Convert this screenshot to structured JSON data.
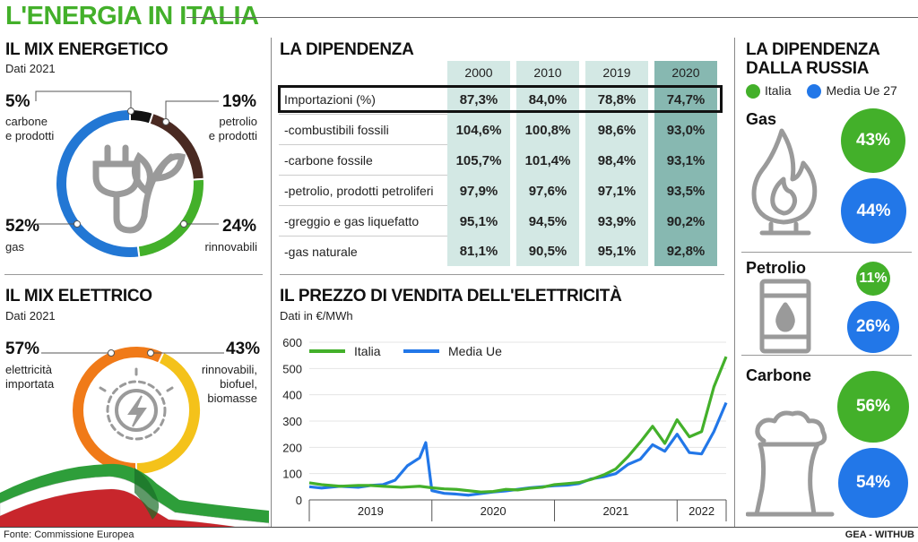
{
  "title": "L'ENERGIA IN ITALIA",
  "mix_energetico": {
    "title": "IL MIX ENERGETICO",
    "subtitle": "Dati 2021",
    "items": [
      {
        "pct": "5%",
        "label1": "carbone",
        "label2": "e prodotti",
        "value": 5,
        "color": "#111111"
      },
      {
        "pct": "19%",
        "label1": "petrolio",
        "label2": "e prodotti",
        "value": 19,
        "color": "#4a2a22"
      },
      {
        "pct": "24%",
        "label1": "rinnovabili",
        "label2": "",
        "value": 24,
        "color": "#43b02a"
      },
      {
        "pct": "52%",
        "label1": "gas",
        "label2": "",
        "value": 52,
        "color": "#2277d4"
      }
    ]
  },
  "mix_elettrico": {
    "title": "IL MIX ELETTRICO",
    "subtitle": "Dati 2021",
    "items": [
      {
        "pct": "57%",
        "label1": "elettricità",
        "label2": "importata",
        "label3": "",
        "value": 57,
        "color": "#f07a18"
      },
      {
        "pct": "43%",
        "label1": "rinnovabili,",
        "label2": "biofuel,",
        "label3": "biomasse",
        "value": 43,
        "color": "#f4c21a"
      }
    ]
  },
  "dipendenza": {
    "title": "LA DIPENDENZA",
    "years": [
      "2000",
      "2010",
      "2019",
      "2020"
    ],
    "rows": [
      {
        "label": "Importazioni (%)",
        "values": [
          "87,3%",
          "84,0%",
          "78,8%",
          "74,7%"
        ]
      },
      {
        "label": "-combustibili fossili",
        "values": [
          "104,6%",
          "100,8%",
          "98,6%",
          "93,0%"
        ]
      },
      {
        "label": "-carbone fossile",
        "values": [
          "105,7%",
          "101,4%",
          "98,4%",
          "93,1%"
        ]
      },
      {
        "label": "-petrolio, prodotti petroliferi",
        "values": [
          "97,9%",
          "97,6%",
          "97,1%",
          "93,5%"
        ]
      },
      {
        "label": "-greggio e gas liquefatto",
        "values": [
          "95,1%",
          "94,5%",
          "93,9%",
          "90,2%"
        ]
      },
      {
        "label": "-gas naturale",
        "values": [
          "81,1%",
          "90,5%",
          "95,1%",
          "92,8%"
        ]
      }
    ]
  },
  "prezzo": {
    "title": "IL PREZZO DI VENDITA DELL'ELETTRICITÀ",
    "subtitle": "Dati in €/MWh"
  },
  "russia": {
    "title1": "LA DIPENDENZA",
    "title2": "DALLA RUSSIA",
    "legend_italia": "Italia",
    "legend_ue": "Media Ue 27",
    "color_italia": "#43b02a",
    "color_ue": "#2277e8",
    "items": [
      {
        "name": "Gas",
        "italia": "43%",
        "ue": "44%",
        "icon": "flame-icon"
      },
      {
        "name": "Petrolio",
        "italia": "11%",
        "ue": "26%",
        "icon": "oil-barrel-icon"
      },
      {
        "name": "Carbone",
        "italia": "56%",
        "ue": "54%",
        "icon": "power-plant-icon"
      }
    ]
  },
  "footer": {
    "source": "Fonte: Commissione Europea",
    "credit": "GEA - WITHUB"
  },
  "chart_data": {
    "type": "line",
    "title": "IL PREZZO DI VENDITA DELL'ELETTRICITÀ",
    "xlabel": "",
    "ylabel": "€/MWh",
    "ylim": [
      0,
      600
    ],
    "yticks": [
      0,
      100,
      200,
      300,
      400,
      500,
      600
    ],
    "categories": [
      "2019",
      "2020",
      "2021",
      "2022"
    ],
    "grid": true,
    "legend": "top-left",
    "series": [
      {
        "name": "Italia",
        "color": "#43b02a",
        "x": [
          0,
          0.1,
          0.25,
          0.4,
          0.5,
          0.6,
          0.75,
          0.9,
          1.0,
          1.1,
          1.2,
          1.3,
          1.4,
          1.5,
          1.6,
          1.7,
          1.8,
          1.9,
          2.0,
          2.1,
          2.2,
          2.3,
          2.4,
          2.5,
          2.6,
          2.7,
          2.8,
          2.9,
          3.0,
          3.1,
          3.2,
          3.3,
          3.4
        ],
        "values": [
          65,
          58,
          52,
          55,
          55,
          52,
          48,
          52,
          46,
          42,
          40,
          35,
          30,
          32,
          40,
          38,
          44,
          48,
          58,
          62,
          66,
          78,
          95,
          118,
          165,
          220,
          280,
          215,
          305,
          240,
          260,
          430,
          545
        ]
      },
      {
        "name": "Media Ue",
        "color": "#2277e8",
        "x": [
          0,
          0.1,
          0.25,
          0.4,
          0.5,
          0.6,
          0.7,
          0.8,
          0.9,
          0.95,
          1.0,
          1.1,
          1.2,
          1.3,
          1.4,
          1.5,
          1.6,
          1.7,
          1.8,
          1.9,
          2.0,
          2.1,
          2.2,
          2.3,
          2.4,
          2.5,
          2.6,
          2.7,
          2.8,
          2.9,
          3.0,
          3.1,
          3.2,
          3.3,
          3.4
        ],
        "values": [
          50,
          45,
          52,
          48,
          55,
          58,
          75,
          130,
          160,
          218,
          35,
          25,
          22,
          18,
          24,
          30,
          34,
          40,
          46,
          50,
          54,
          56,
          62,
          80,
          88,
          100,
          135,
          155,
          210,
          185,
          250,
          180,
          175,
          260,
          370
        ]
      }
    ]
  }
}
